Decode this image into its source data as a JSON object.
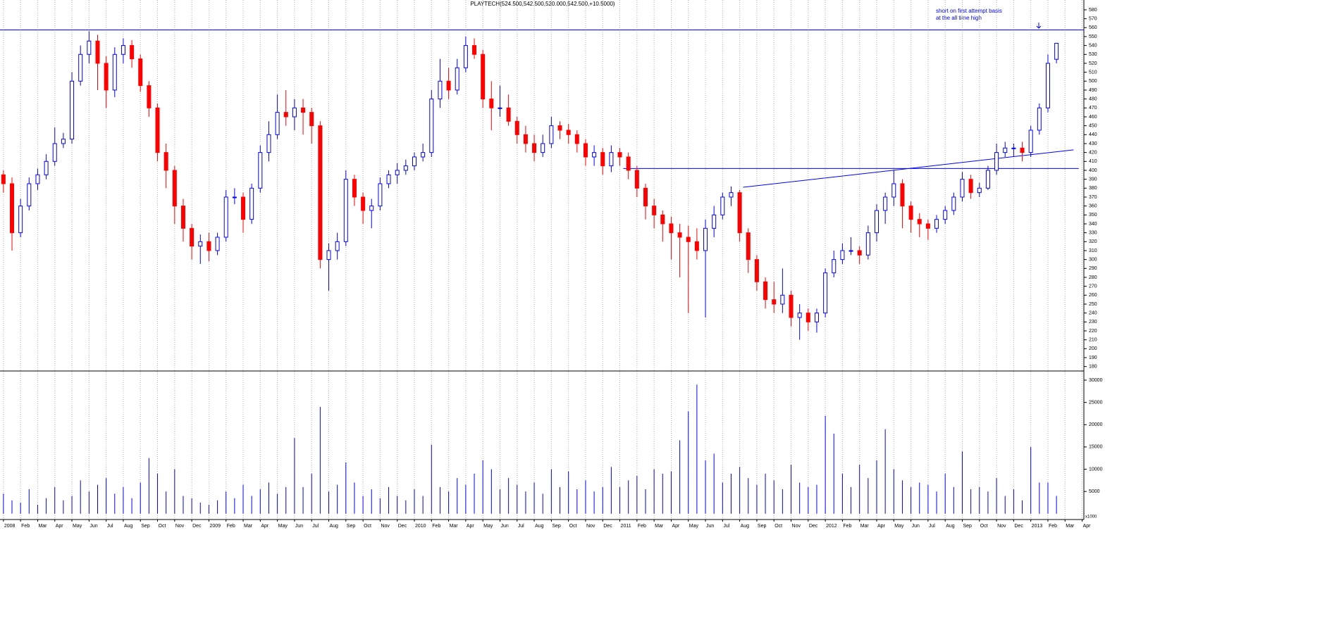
{
  "chart_data": {
    "type": "candlestick",
    "title": "PLAYTECH(524.500,542.500,520.000,542.500,+10.5000)",
    "annotations": [
      "short on first attempt basis",
      "at the all time high"
    ],
    "colors": {
      "up": "#ffffff",
      "down": "#ff0000",
      "edge": "#0000ff",
      "line": "#0000ff"
    },
    "grid": true,
    "xlim": [
      -0.2,
      63.1
    ],
    "xticks": [
      {
        "value": 0,
        "label": "2008"
      },
      {
        "value": 1,
        "label": "Feb"
      },
      {
        "value": 2,
        "label": "Mar"
      },
      {
        "value": 3,
        "label": "Apr"
      },
      {
        "value": 4,
        "label": "May"
      },
      {
        "value": 5,
        "label": "Jun"
      },
      {
        "value": 6,
        "label": "Jul"
      },
      {
        "value": 7,
        "label": "Aug"
      },
      {
        "value": 8,
        "label": "Sep"
      },
      {
        "value": 9,
        "label": "Oct"
      },
      {
        "value": 10,
        "label": "Nov"
      },
      {
        "value": 11,
        "label": "Dec"
      },
      {
        "value": 12,
        "label": "2009"
      },
      {
        "value": 13,
        "label": "Feb"
      },
      {
        "value": 14,
        "label": "Mar"
      },
      {
        "value": 15,
        "label": "Apr"
      },
      {
        "value": 16,
        "label": "May"
      },
      {
        "value": 17,
        "label": "Jun"
      },
      {
        "value": 18,
        "label": "Jul"
      },
      {
        "value": 19,
        "label": "Aug"
      },
      {
        "value": 20,
        "label": "Sep"
      },
      {
        "value": 21,
        "label": "Oct"
      },
      {
        "value": 22,
        "label": "Nov"
      },
      {
        "value": 23,
        "label": "Dec"
      },
      {
        "value": 24,
        "label": "2010"
      },
      {
        "value": 25,
        "label": "Feb"
      },
      {
        "value": 26,
        "label": "Mar"
      },
      {
        "value": 27,
        "label": "Apr"
      },
      {
        "value": 28,
        "label": "May"
      },
      {
        "value": 29,
        "label": "Jun"
      },
      {
        "value": 30,
        "label": "Jul"
      },
      {
        "value": 31,
        "label": "Aug"
      },
      {
        "value": 32,
        "label": "Sep"
      },
      {
        "value": 33,
        "label": "Oct"
      },
      {
        "value": 34,
        "label": "Nov"
      },
      {
        "value": 35,
        "label": "Dec"
      },
      {
        "value": 36,
        "label": "2011"
      },
      {
        "value": 37,
        "label": "Feb"
      },
      {
        "value": 38,
        "label": "Mar"
      },
      {
        "value": 39,
        "label": "Apr"
      },
      {
        "value": 40,
        "label": "May"
      },
      {
        "value": 41,
        "label": "Jun"
      },
      {
        "value": 42,
        "label": "Jul"
      },
      {
        "value": 43,
        "label": "Aug"
      },
      {
        "value": 44,
        "label": "Sep"
      },
      {
        "value": 45,
        "label": "Oct"
      },
      {
        "value": 46,
        "label": "Nov"
      },
      {
        "value": 47,
        "label": "Dec"
      },
      {
        "value": 48,
        "label": "2012"
      },
      {
        "value": 49,
        "label": "Feb"
      },
      {
        "value": 50,
        "label": "Mar"
      },
      {
        "value": 51,
        "label": "Apr"
      },
      {
        "value": 52,
        "label": "May"
      },
      {
        "value": 53,
        "label": "Jun"
      },
      {
        "value": 54,
        "label": "Jul"
      },
      {
        "value": 55,
        "label": "Aug"
      },
      {
        "value": 56,
        "label": "Sep"
      },
      {
        "value": 57,
        "label": "Oct"
      },
      {
        "value": 58,
        "label": "Nov"
      },
      {
        "value": 59,
        "label": "Dec"
      },
      {
        "value": 60,
        "label": "2013"
      },
      {
        "value": 61,
        "label": "Feb"
      },
      {
        "value": 62,
        "label": "Mar"
      },
      {
        "value": 63,
        "label": "Apr"
      }
    ],
    "ylim": [
      175,
      591
    ],
    "yticks": [
      180,
      190,
      200,
      210,
      220,
      230,
      240,
      250,
      260,
      270,
      280,
      290,
      300,
      310,
      320,
      330,
      340,
      350,
      360,
      370,
      380,
      390,
      400,
      410,
      420,
      430,
      440,
      450,
      460,
      470,
      480,
      490,
      500,
      510,
      520,
      530,
      540,
      550,
      560,
      570,
      580
    ],
    "hlines": [
      557.5
    ],
    "lines": [
      {
        "x": [
          36.2,
          62.8
        ],
        "y": [
          402,
          402
        ]
      },
      {
        "x": [
          43.2,
          62.5
        ],
        "y": [
          381,
          423
        ]
      }
    ],
    "x": [
      0,
      0.5,
      1,
      1.5,
      2,
      2.5,
      3,
      3.5,
      4,
      4.5,
      5,
      5.5,
      6,
      6.5,
      7,
      7.5,
      8,
      8.5,
      9,
      9.5,
      10,
      10.5,
      11,
      11.5,
      12,
      12.5,
      13,
      13.5,
      14,
      14.5,
      15,
      15.5,
      16,
      16.5,
      17,
      17.5,
      18,
      18.5,
      19,
      19.5,
      20,
      20.5,
      21,
      21.5,
      22,
      22.5,
      23,
      23.5,
      24,
      24.5,
      25,
      25.5,
      26,
      26.5,
      27,
      27.5,
      28,
      28.5,
      29,
      29.5,
      30,
      30.5,
      31,
      31.5,
      32,
      32.5,
      33,
      33.5,
      34,
      34.5,
      35,
      35.5,
      36,
      36.5,
      37,
      37.5,
      38,
      38.5,
      39,
      39.5,
      40,
      40.5,
      41,
      41.5,
      42,
      42.5,
      43,
      43.5,
      44,
      44.5,
      45,
      45.5,
      46,
      46.5,
      47,
      47.5,
      48,
      48.5,
      49,
      49.5,
      50,
      50.5,
      51,
      51.5,
      52,
      52.5,
      53,
      53.5,
      54,
      54.5,
      55,
      55.5,
      56,
      56.5,
      57,
      57.5,
      58,
      58.5,
      59,
      59.5,
      60,
      60.5,
      61,
      61.5
    ],
    "open": [
      395,
      385,
      330,
      360,
      385,
      395,
      410,
      430,
      435,
      500,
      530,
      545,
      520,
      490,
      530,
      540,
      525,
      495,
      470,
      420,
      400,
      360,
      335,
      315,
      320,
      310,
      325,
      370,
      370,
      345,
      380,
      420,
      440,
      465,
      460,
      470,
      465,
      450,
      300,
      310,
      320,
      390,
      370,
      355,
      360,
      385,
      395,
      400,
      405,
      415,
      420,
      480,
      500,
      490,
      515,
      540,
      530,
      480,
      470,
      470,
      455,
      440,
      430,
      420,
      430,
      450,
      445,
      440,
      430,
      415,
      420,
      405,
      420,
      415,
      400,
      380,
      360,
      350,
      340,
      330,
      325,
      320,
      310,
      335,
      350,
      370,
      375,
      330,
      300,
      275,
      255,
      250,
      260,
      235,
      240,
      230,
      240,
      285,
      300,
      310,
      310,
      305,
      330,
      355,
      370,
      385,
      360,
      345,
      340,
      335,
      345,
      355,
      370,
      390,
      375,
      380,
      400,
      420,
      425,
      425,
      420,
      445,
      470,
      524.5
    ],
    "high": [
      400,
      392,
      368,
      392,
      402,
      418,
      448,
      442,
      510,
      540,
      556,
      552,
      528,
      538,
      548,
      546,
      530,
      500,
      475,
      430,
      405,
      368,
      340,
      328,
      330,
      330,
      378,
      380,
      375,
      385,
      428,
      455,
      485,
      490,
      480,
      480,
      470,
      455,
      318,
      330,
      400,
      395,
      375,
      368,
      392,
      400,
      408,
      412,
      420,
      430,
      490,
      525,
      515,
      525,
      550,
      548,
      535,
      500,
      495,
      485,
      460,
      450,
      440,
      440,
      460,
      455,
      452,
      445,
      435,
      428,
      425,
      428,
      425,
      420,
      405,
      385,
      368,
      355,
      348,
      340,
      338,
      335,
      345,
      360,
      375,
      382,
      378,
      335,
      305,
      280,
      275,
      290,
      265,
      250,
      245,
      245,
      290,
      310,
      318,
      325,
      315,
      338,
      362,
      375,
      400,
      390,
      365,
      352,
      345,
      350,
      360,
      375,
      398,
      395,
      386,
      405,
      430,
      432,
      430,
      432,
      450,
      475,
      530,
      542.5
    ],
    "low": [
      375,
      310,
      325,
      355,
      378,
      390,
      405,
      425,
      430,
      495,
      520,
      490,
      470,
      482,
      520,
      515,
      488,
      460,
      410,
      380,
      340,
      320,
      300,
      295,
      298,
      305,
      320,
      362,
      330,
      340,
      375,
      410,
      435,
      450,
      445,
      440,
      430,
      290,
      265,
      300,
      315,
      360,
      340,
      335,
      355,
      380,
      385,
      395,
      400,
      410,
      415,
      470,
      480,
      485,
      510,
      525,
      470,
      445,
      460,
      450,
      430,
      420,
      410,
      415,
      425,
      435,
      430,
      420,
      405,
      405,
      395,
      398,
      405,
      390,
      370,
      345,
      335,
      320,
      300,
      280,
      240,
      300,
      235,
      325,
      345,
      360,
      320,
      285,
      265,
      245,
      240,
      240,
      225,
      210,
      220,
      218,
      235,
      280,
      295,
      305,
      295,
      300,
      320,
      340,
      360,
      335,
      330,
      325,
      322,
      330,
      340,
      350,
      365,
      368,
      370,
      378,
      395,
      415,
      415,
      410,
      415,
      440,
      465,
      520
    ],
    "close": [
      385,
      330,
      360,
      385,
      395,
      410,
      430,
      435,
      500,
      530,
      545,
      520,
      490,
      530,
      540,
      525,
      495,
      470,
      420,
      400,
      360,
      335,
      315,
      320,
      310,
      325,
      370,
      370,
      345,
      380,
      420,
      440,
      465,
      460,
      470,
      465,
      450,
      300,
      310,
      320,
      390,
      370,
      355,
      360,
      385,
      395,
      400,
      405,
      415,
      420,
      480,
      500,
      490,
      515,
      540,
      530,
      480,
      470,
      470,
      455,
      440,
      430,
      420,
      430,
      450,
      445,
      440,
      430,
      415,
      420,
      405,
      420,
      415,
      400,
      380,
      360,
      350,
      340,
      330,
      325,
      320,
      310,
      335,
      350,
      370,
      375,
      330,
      300,
      275,
      255,
      250,
      260,
      235,
      240,
      230,
      240,
      285,
      300,
      310,
      310,
      305,
      330,
      355,
      370,
      385,
      360,
      345,
      340,
      335,
      345,
      355,
      370,
      390,
      375,
      380,
      400,
      420,
      425,
      425,
      420,
      445,
      470,
      520,
      542.5
    ],
    "volume": {
      "label": "x1000",
      "color": "#0000ff",
      "ylim": [
        -1300,
        31900
      ],
      "yticks": [
        5000,
        10000,
        15000,
        20000,
        25000,
        30000
      ],
      "values": [
        4500,
        3000,
        2500,
        5500,
        2000,
        3500,
        6000,
        3000,
        4000,
        7500,
        5000,
        6500,
        8000,
        4500,
        6000,
        3500,
        7000,
        12500,
        9000,
        5000,
        10000,
        4000,
        3500,
        2500,
        2000,
        3000,
        5000,
        3500,
        6500,
        4000,
        5500,
        7000,
        4500,
        6000,
        17000,
        6000,
        9000,
        24000,
        5000,
        6500,
        11500,
        7000,
        4000,
        5500,
        3500,
        6000,
        4000,
        3000,
        5500,
        4000,
        15500,
        6000,
        5000,
        8000,
        6500,
        9000,
        12000,
        10000,
        5500,
        8000,
        6500,
        5000,
        7000,
        4500,
        10000,
        6000,
        9500,
        5500,
        7500,
        5000,
        6000,
        10500,
        6000,
        7500,
        8500,
        5500,
        10000,
        9000,
        9500,
        16500,
        23000,
        29000,
        12000,
        13500,
        7000,
        9000,
        10500,
        8000,
        6500,
        9000,
        7500,
        5500,
        11000,
        7000,
        6000,
        6500,
        22000,
        18000,
        9000,
        6000,
        11000,
        8000,
        12000,
        19000,
        10000,
        7500,
        6000,
        7000,
        6500,
        5000,
        9000,
        6000,
        14000,
        5500,
        6000,
        5000,
        8000,
        4000,
        5500,
        3000,
        15000,
        7000,
        7000,
        4000
      ]
    }
  }
}
